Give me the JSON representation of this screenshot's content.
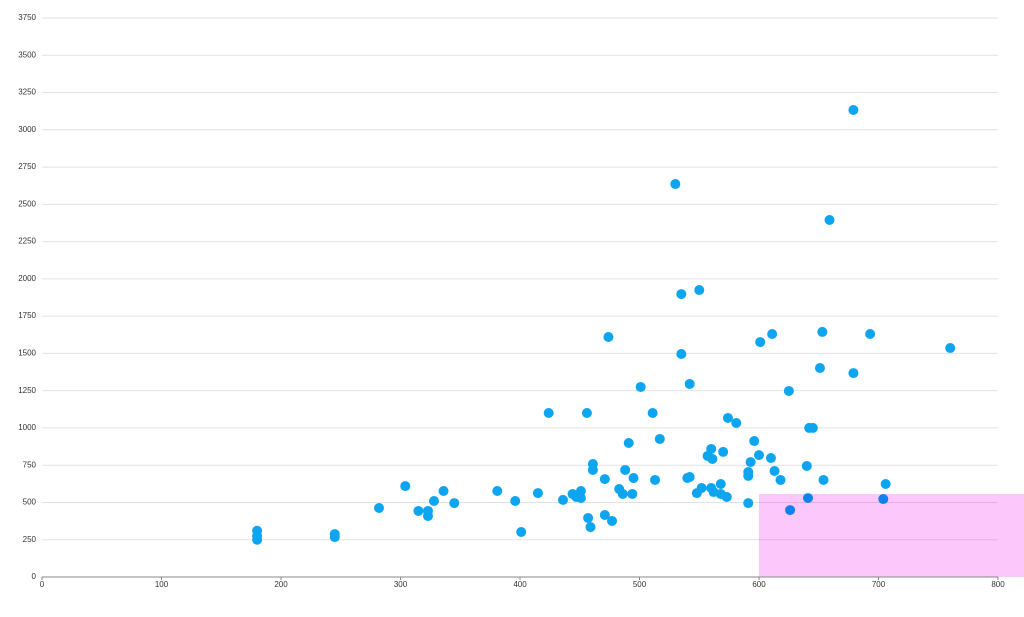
{
  "chart_data": {
    "type": "scatter",
    "series": [
      {
        "color": "#0ea5f0",
        "x": [
          180,
          180,
          180,
          245,
          245,
          282,
          304,
          315,
          323,
          323,
          328,
          336,
          345,
          381,
          396,
          401,
          415,
          424,
          436,
          444,
          447,
          451,
          451,
          456,
          457,
          459,
          461,
          461,
          471,
          471,
          474,
          477,
          483,
          486,
          488,
          491,
          494,
          495,
          501,
          511,
          513,
          517,
          530,
          535,
          535,
          540,
          542,
          542,
          548,
          550,
          552,
          557,
          560,
          560,
          561,
          562,
          568,
          568,
          570,
          573,
          574,
          581,
          591,
          591,
          591,
          593,
          596,
          600,
          601,
          610,
          611,
          613,
          618,
          625,
          626,
          640,
          641,
          642,
          645,
          651,
          653,
          654,
          659,
          679,
          679,
          693,
          704,
          706,
          760
        ],
        "values": [
          310,
          275,
          250,
          288,
          268,
          463,
          610,
          443,
          443,
          409,
          510,
          577,
          496,
          577,
          510,
          302,
          563,
          1100,
          517,
          557,
          537,
          530,
          577,
          1100,
          396,
          335,
          758,
          718,
          657,
          416,
          1610,
          376,
          590,
          557,
          718,
          899,
          557,
          664,
          1275,
          1100,
          651,
          926,
          2636,
          1898,
          1496,
          664,
          671,
          1295,
          563,
          1925,
          597,
          812,
          859,
          597,
          792,
          570,
          624,
          557,
          839,
          537,
          1067,
          1033,
          704,
          678,
          496,
          771,
          912,
          818,
          1576,
          798,
          1630,
          711,
          651,
          1248,
          449,
          745,
          530,
          1000,
          1000,
          1402,
          1644,
          651,
          2395,
          3133,
          1368,
          1630,
          523,
          624,
          1536
        ]
      }
    ],
    "xlim": [
      0,
      800
    ],
    "xticks": [
      0,
      100,
      200,
      300,
      400,
      500,
      600,
      700,
      800
    ],
    "ylim": [
      0,
      3750
    ],
    "yticks": [
      0,
      250,
      500,
      750,
      1000,
      1250,
      1500,
      1750,
      2000,
      2250,
      2500,
      2750,
      3000,
      3250,
      3500,
      3750
    ],
    "grid": true
  }
}
